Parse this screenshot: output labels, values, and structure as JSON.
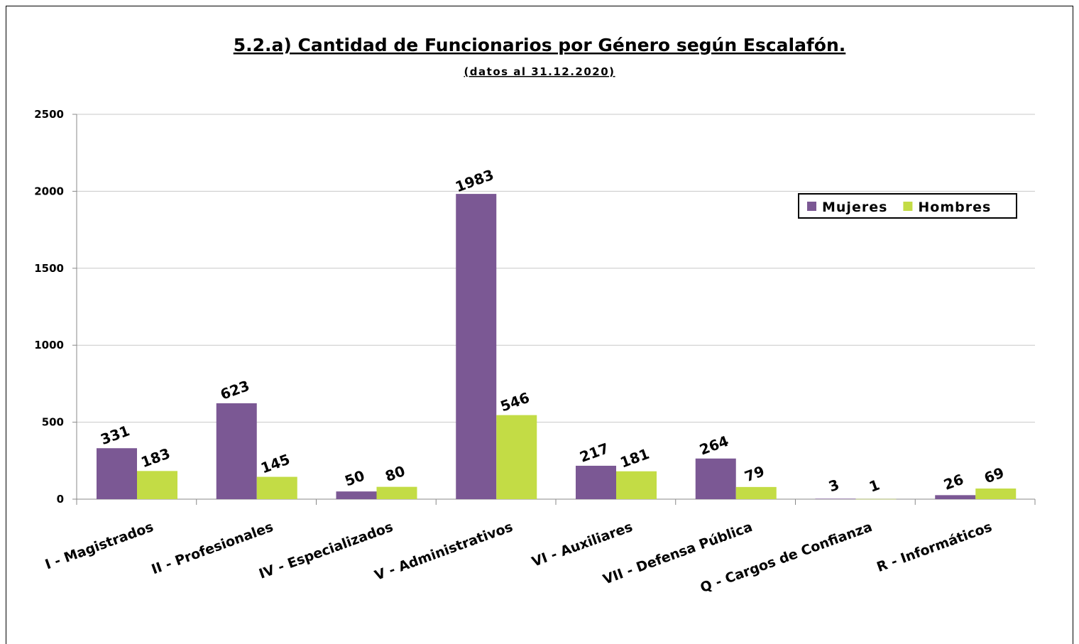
{
  "chart_data": {
    "type": "bar",
    "title": "5.2.a) Cantidad de Funcionarios por Género según Escalafón.",
    "subtitle": "(datos al 31.12.2020)",
    "categories": [
      "I - Magistrados",
      "II - Profesionales",
      "IV - Especializados",
      "V - Administrativos",
      "VI - Auxiliares",
      "VII - Defensa Pública",
      "Q - Cargos de Confianza",
      "R - Informáticos"
    ],
    "series": [
      {
        "name": "Mujeres",
        "color": "#7b5894",
        "values": [
          331,
          623,
          50,
          1983,
          217,
          264,
          3,
          26
        ]
      },
      {
        "name": "Hombres",
        "color": "#c3dc45",
        "values": [
          183,
          145,
          80,
          546,
          181,
          79,
          1,
          69
        ]
      }
    ],
    "ylim": [
      0,
      2500
    ],
    "yticks": [
      0,
      500,
      1000,
      1500,
      2000,
      2500
    ],
    "grid": true,
    "legend": "upper right"
  }
}
